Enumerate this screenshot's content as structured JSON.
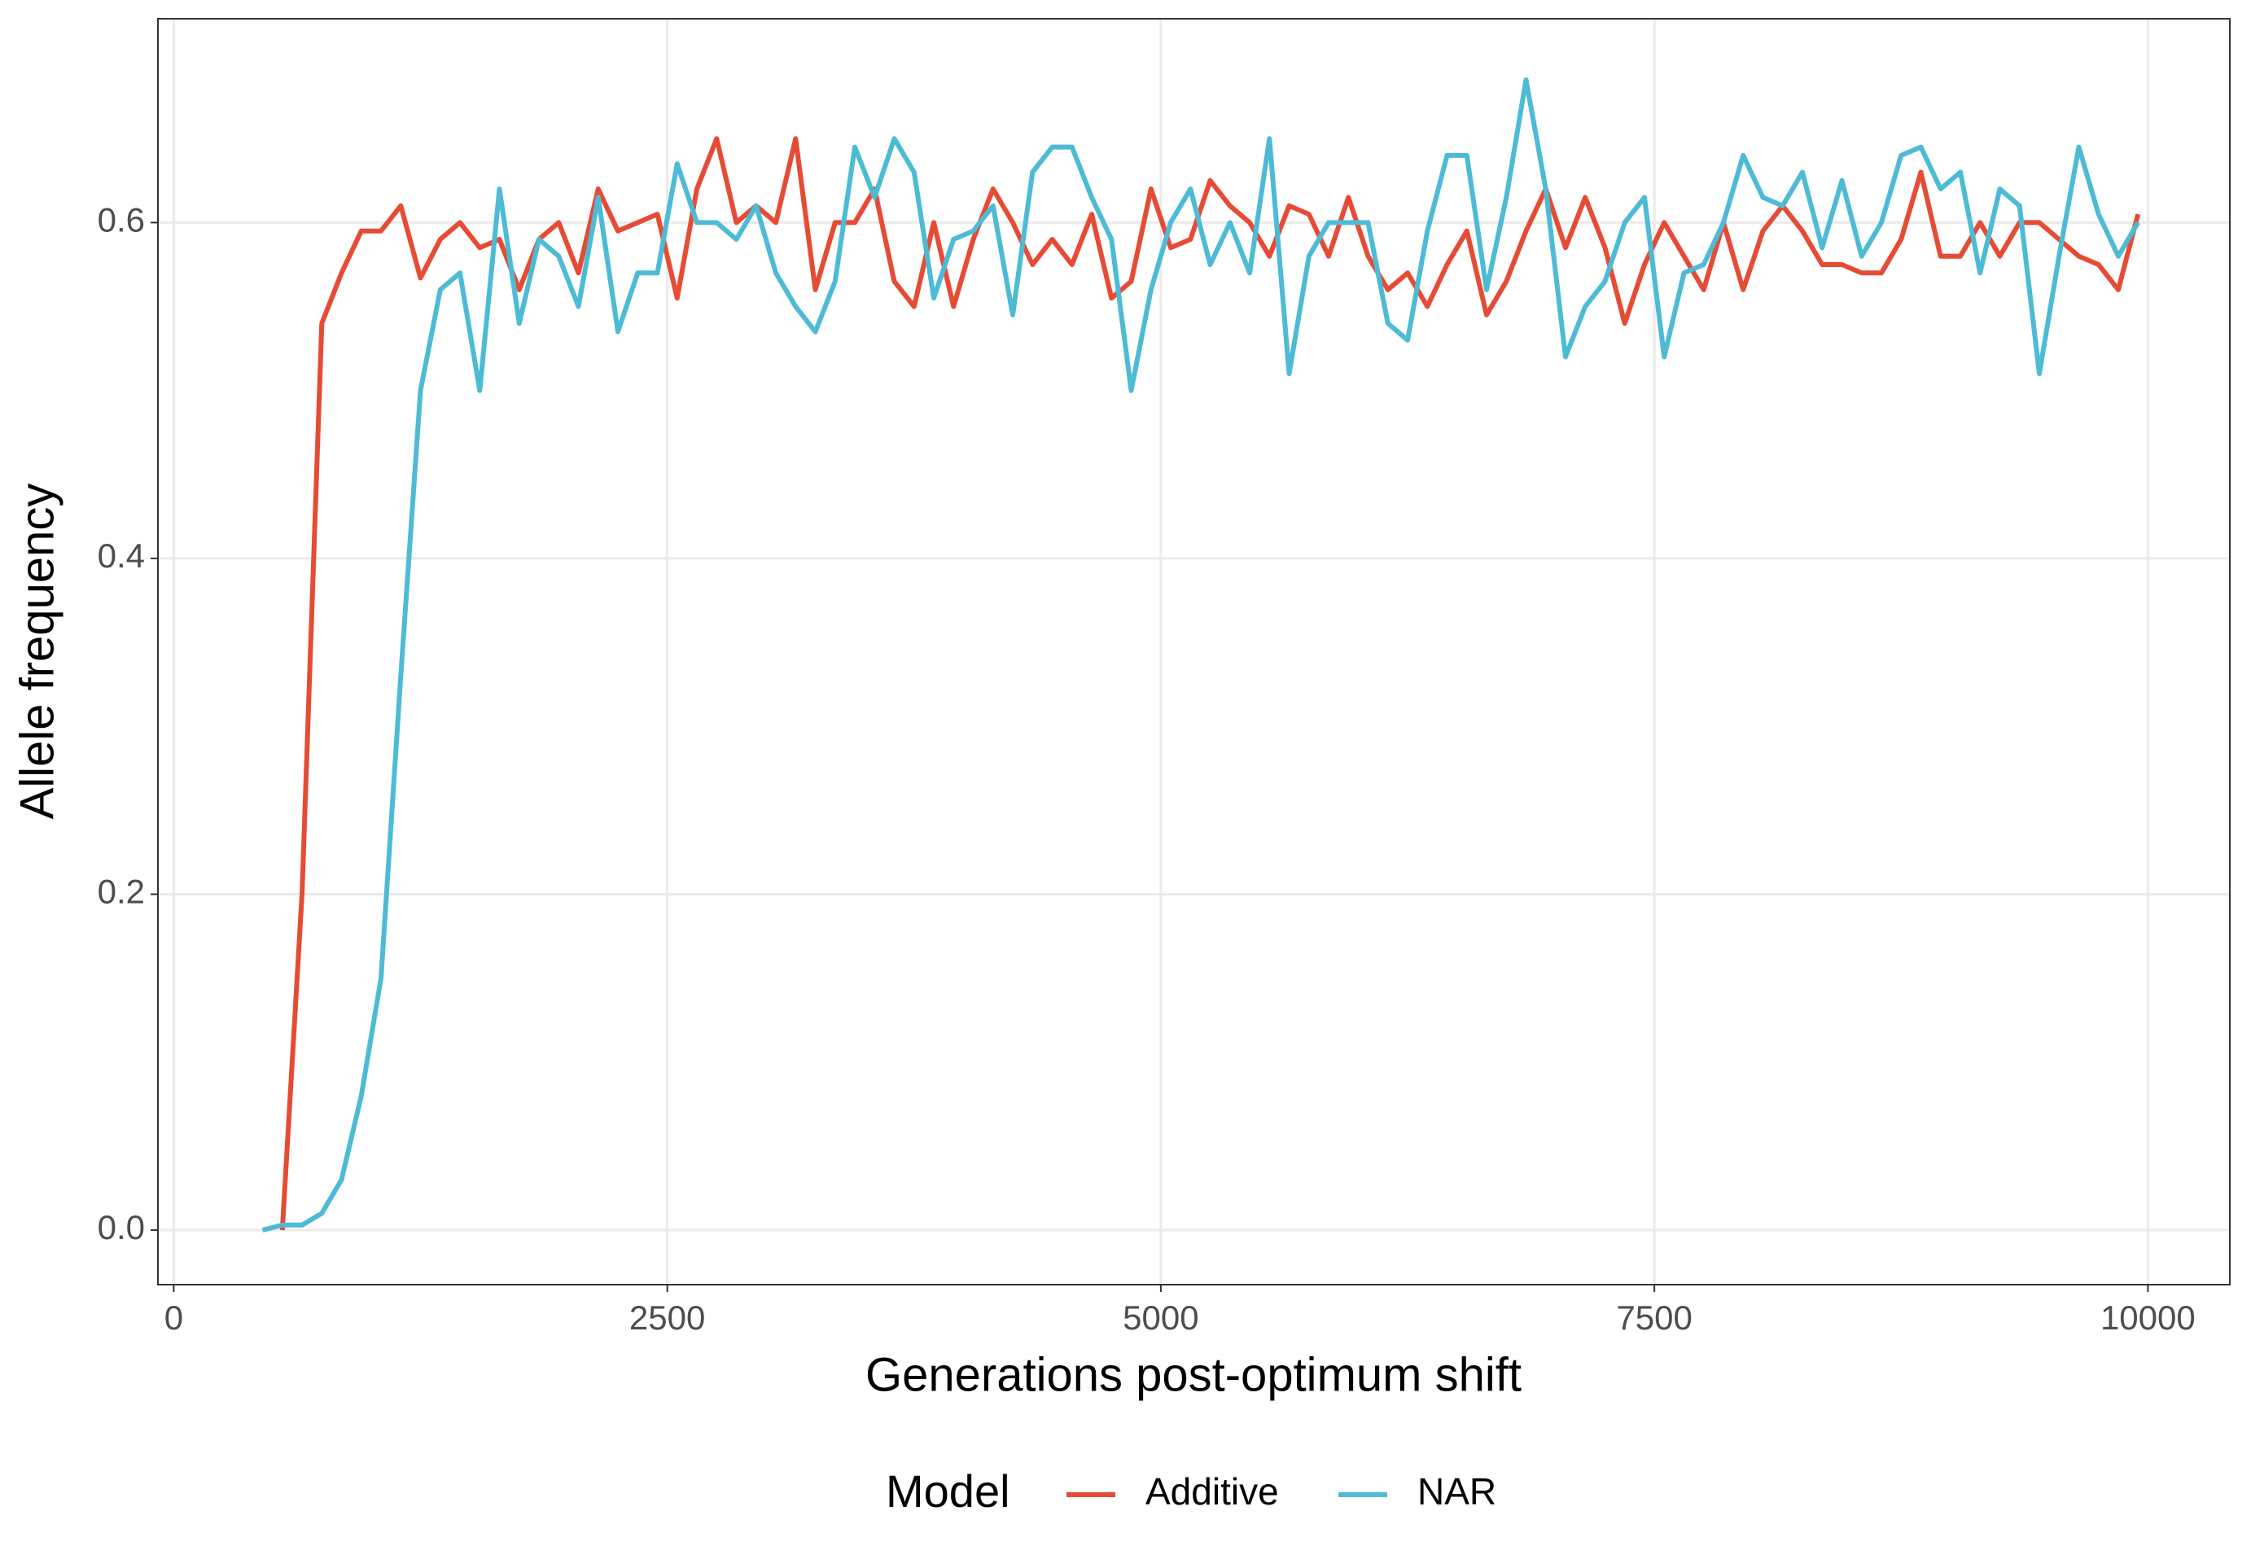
{
  "chart_data": {
    "type": "line",
    "x_label": "Generations post-optimum shift",
    "y_label": "Allele frequency",
    "legend_title": "Model",
    "legend_position": "bottom",
    "grid": true,
    "xlim": [
      -80,
      10415
    ],
    "ylim": [
      -0.0325,
      0.7214
    ],
    "xticks": [
      0,
      2500,
      5000,
      7500,
      10000
    ],
    "yticks": [
      {
        "value": 0,
        "label": "0.0"
      },
      0.2,
      0.4,
      0.6
    ],
    "x": [
      450,
      550,
      650,
      750,
      850,
      950,
      1050,
      1150,
      1250,
      1350,
      1450,
      1550,
      1650,
      1750,
      1850,
      1950,
      2050,
      2150,
      2250,
      2350,
      2450,
      2550,
      2650,
      2750,
      2850,
      2950,
      3050,
      3150,
      3250,
      3350,
      3450,
      3550,
      3650,
      3750,
      3850,
      3950,
      4050,
      4150,
      4250,
      4350,
      4450,
      4550,
      4650,
      4750,
      4850,
      4950,
      5050,
      5150,
      5250,
      5350,
      5450,
      5550,
      5650,
      5750,
      5850,
      5950,
      6050,
      6150,
      6250,
      6350,
      6450,
      6550,
      6650,
      6750,
      6850,
      6950,
      7050,
      7150,
      7250,
      7350,
      7450,
      7550,
      7650,
      7750,
      7850,
      7950,
      8050,
      8150,
      8250,
      8350,
      8450,
      8550,
      8650,
      8750,
      8850,
      8950,
      9050,
      9150,
      9250,
      9350,
      9450,
      9550,
      9650,
      9750,
      9850,
      9950
    ],
    "series": [
      {
        "name": "Additive",
        "color": "#E64B35",
        "values": [
          null,
          0.0,
          0.2,
          0.54,
          0.57,
          0.595,
          0.595,
          0.61,
          0.567,
          0.59,
          0.6,
          0.585,
          0.59,
          0.56,
          0.59,
          0.6,
          0.57,
          0.62,
          0.595,
          0.6,
          0.605,
          0.555,
          0.62,
          0.65,
          0.6,
          0.61,
          0.6,
          0.65,
          0.56,
          0.6,
          0.6,
          0.62,
          0.565,
          0.55,
          0.6,
          0.55,
          0.59,
          0.62,
          0.6,
          0.575,
          0.59,
          0.575,
          0.605,
          0.555,
          0.565,
          0.62,
          0.585,
          0.59,
          0.625,
          0.61,
          0.6,
          0.58,
          0.61,
          0.605,
          0.58,
          0.615,
          0.58,
          0.56,
          0.57,
          0.55,
          0.575,
          0.595,
          0.545,
          0.565,
          0.595,
          0.62,
          0.585,
          0.615,
          0.585,
          0.54,
          0.575,
          0.6,
          0.58,
          0.56,
          0.6,
          0.56,
          0.595,
          0.61,
          0.595,
          0.575,
          0.575,
          0.57,
          0.57,
          0.59,
          0.63,
          0.58,
          0.58,
          0.6,
          0.58,
          0.6,
          0.6,
          0.59,
          0.58,
          0.575,
          0.56,
          0.605
        ]
      },
      {
        "name": "NAR",
        "color": "#4DBBD5",
        "values": [
          0.0,
          0.003,
          0.003,
          0.01,
          0.03,
          0.08,
          0.15,
          0.33,
          0.5,
          0.56,
          0.57,
          0.5,
          0.62,
          0.54,
          0.59,
          0.58,
          0.55,
          0.615,
          0.535,
          0.57,
          0.57,
          0.635,
          0.6,
          0.6,
          0.59,
          0.61,
          0.57,
          0.55,
          0.535,
          0.565,
          0.645,
          0.615,
          0.65,
          0.63,
          0.555,
          0.59,
          0.595,
          0.61,
          0.545,
          0.63,
          0.645,
          0.645,
          0.615,
          0.59,
          0.5,
          0.56,
          0.6,
          0.62,
          0.575,
          0.6,
          0.57,
          0.65,
          0.51,
          0.58,
          0.6,
          0.6,
          0.6,
          0.54,
          0.53,
          0.595,
          0.64,
          0.64,
          0.56,
          0.615,
          0.685,
          0.62,
          0.52,
          0.55,
          0.565,
          0.6,
          0.615,
          0.52,
          0.57,
          0.575,
          0.6,
          0.64,
          0.615,
          0.61,
          0.63,
          0.585,
          0.625,
          0.58,
          0.6,
          0.64,
          0.645,
          0.62,
          0.63,
          0.57,
          0.62,
          0.61,
          0.51,
          0.58,
          0.645,
          0.605,
          0.58,
          0.6
        ]
      }
    ]
  }
}
